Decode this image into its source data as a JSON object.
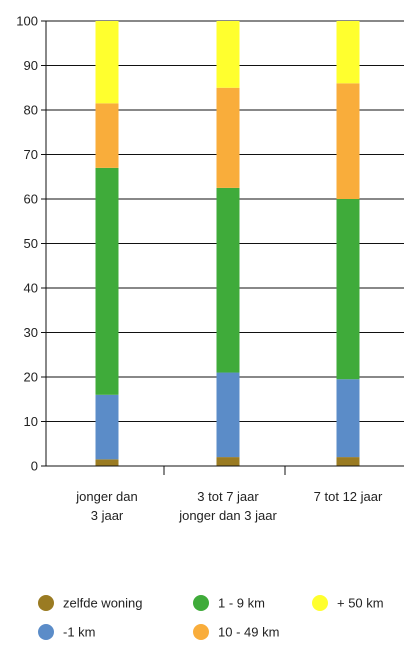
{
  "chart_data": {
    "type": "bar",
    "stacked": true,
    "title": "",
    "xlabel": "",
    "ylabel": "",
    "ylim": [
      0,
      100
    ],
    "yticks": [
      0,
      10,
      20,
      30,
      40,
      50,
      60,
      70,
      80,
      90,
      100
    ],
    "grid": true,
    "legend_position": "bottom",
    "categories": [
      [
        "jonger dan",
        "3 jaar"
      ],
      [
        "3 tot 7 jaar",
        "jonger dan 3 jaar"
      ],
      [
        "7 tot 12 jaar"
      ]
    ],
    "series": [
      {
        "name": "zelfde woning",
        "color": "#9a7b22",
        "values": [
          1.5,
          2,
          2
        ]
      },
      {
        "name": "-1 km",
        "color": "#5b8cc8",
        "values": [
          14.5,
          19,
          17.5
        ]
      },
      {
        "name": "1 - 9 km",
        "color": "#3fab3a",
        "values": [
          51,
          41.5,
          40.5
        ]
      },
      {
        "name": "10 - 49 km",
        "color": "#f9ad3b",
        "values": [
          14.5,
          22.5,
          26
        ]
      },
      {
        "name": "+ 50 km",
        "color": "#ffff2e",
        "values": [
          18.5,
          15,
          14
        ]
      }
    ],
    "legend": [
      {
        "series": 0
      },
      {
        "series": 2
      },
      {
        "series": 4
      },
      {
        "series": 1
      },
      {
        "series": 3
      }
    ]
  }
}
